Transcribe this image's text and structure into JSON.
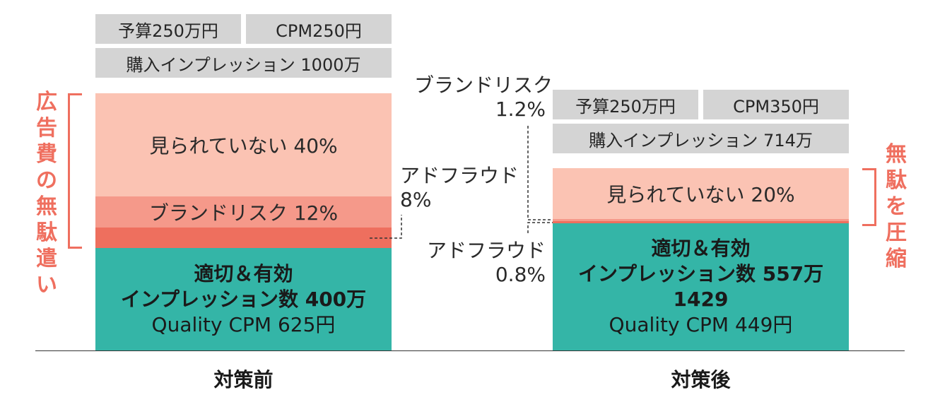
{
  "colors": {
    "unseen": "#fbc3b3",
    "brand_risk": "#f5998a",
    "ad_fraud": "#ee6f5e",
    "effective": "#34b5a7",
    "chip": "#d4d4d4",
    "accent": "#ef6f5f"
  },
  "before": {
    "budget": "予算250万円",
    "cpm": "CPM250円",
    "impressions": "購入インプレッション 1000万",
    "unseen_label": "見られていない 40%",
    "brand_risk_label": "ブランドリスク 12%",
    "fraud_name": "アドフラウド",
    "fraud_pct": "8%",
    "effective_line1": "適切＆有効",
    "effective_line2": "インプレッション数 400万",
    "effective_line3": "Quality CPM 625円",
    "waste_label": "広告費の無駄遣い"
  },
  "after": {
    "budget": "予算250万円",
    "cpm": "CPM350円",
    "impressions": "購入インプレッション 714万",
    "unseen_label": "見られていない 20%",
    "brand_name": "ブランドリスク",
    "brand_pct": "1.2%",
    "fraud_name": "アドフラウド",
    "fraud_pct": "0.8%",
    "effective_line1": "適切＆有効",
    "effective_line2": "インプレッション数 557万1429",
    "effective_line3": "Quality CPM 449円",
    "reduce_label": "無駄を圧縮"
  },
  "chart_data": {
    "type": "bar",
    "categories": [
      "対策前",
      "対策後"
    ],
    "series": [
      {
        "name": "適切＆有効",
        "values": [
          400,
          557.1429
        ]
      },
      {
        "name": "アドフラウド",
        "values": [
          80,
          5.7
        ]
      },
      {
        "name": "ブランドリスク",
        "values": [
          120,
          8.6
        ]
      },
      {
        "name": "見られていない",
        "values": [
          400,
          142.8
        ]
      }
    ],
    "percents": {
      "before": {
        "見られていない": 40,
        "ブランドリスク": 12,
        "アドフラウド": 8
      },
      "after": {
        "見られていない": 20,
        "ブランドリスク": 1.2,
        "アドフラウド": 0.8
      }
    },
    "ylim": [
      0,
      1000
    ]
  }
}
